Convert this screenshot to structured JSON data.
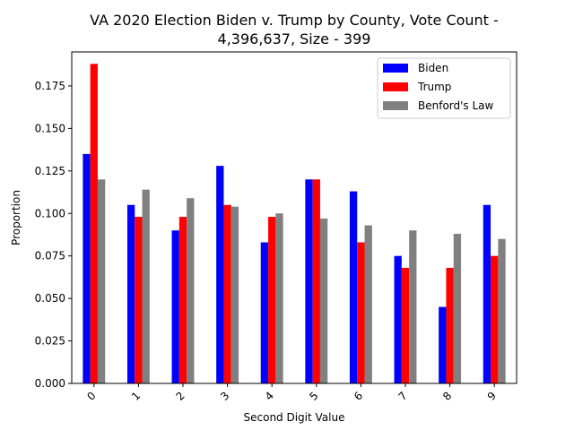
{
  "chart_data": {
    "type": "bar",
    "title_line1": "VA 2020 Election Biden v. Trump by County, Vote Count -",
    "title_line2": "4,396,637, Size - 399",
    "xlabel": "Second Digit Value",
    "ylabel": "Proportion",
    "categories": [
      "0",
      "1",
      "2",
      "3",
      "4",
      "5",
      "6",
      "7",
      "8",
      "9"
    ],
    "ylim": [
      0,
      0.195
    ],
    "yticks": [
      "0.000",
      "0.025",
      "0.050",
      "0.075",
      "0.100",
      "0.125",
      "0.150",
      "0.175"
    ],
    "ytick_values": [
      0,
      0.025,
      0.05,
      0.075,
      0.1,
      0.125,
      0.15,
      0.175
    ],
    "grid": false,
    "legend_position": "top-right",
    "series": [
      {
        "name": "Biden",
        "color": "#0000ff",
        "values": [
          0.135,
          0.105,
          0.09,
          0.128,
          0.083,
          0.12,
          0.113,
          0.075,
          0.045,
          0.105
        ]
      },
      {
        "name": "Trump",
        "color": "#ff0000",
        "values": [
          0.188,
          0.098,
          0.098,
          0.105,
          0.098,
          0.12,
          0.083,
          0.068,
          0.068,
          0.075
        ]
      },
      {
        "name": "Benford's Law",
        "color": "#808080",
        "values": [
          0.12,
          0.114,
          0.109,
          0.104,
          0.1,
          0.097,
          0.093,
          0.09,
          0.088,
          0.085
        ]
      }
    ]
  }
}
